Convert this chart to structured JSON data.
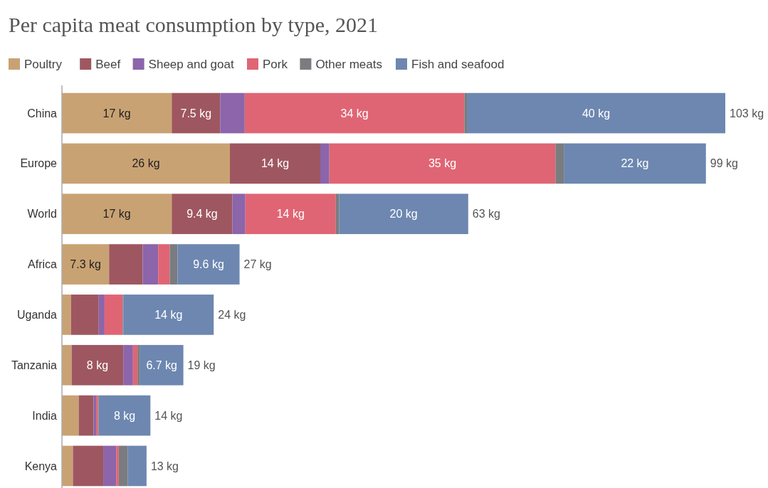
{
  "chart_data": {
    "type": "bar",
    "orientation": "horizontal",
    "stacked": true,
    "title": "Per capita meat consumption by type, 2021",
    "legend": "top left",
    "categories": [
      "China",
      "Europe",
      "World",
      "Africa",
      "Uganda",
      "Tanzania",
      "India",
      "Kenya"
    ],
    "series": [
      {
        "name": "Poultry",
        "color": "#c9a273",
        "values": [
          17,
          26,
          17,
          7.3,
          1.4,
          1.5,
          2.6,
          1.7
        ],
        "value_labels": [
          "17 kg",
          "26 kg",
          "17 kg",
          "7.3 kg",
          null,
          null,
          null,
          null
        ]
      },
      {
        "name": "Beef",
        "color": "#9e5760",
        "values": [
          7.5,
          14,
          9.4,
          5.2,
          4.3,
          8,
          2.3,
          4.7
        ],
        "value_labels": [
          "7.5 kg",
          "14 kg",
          "9.4 kg",
          null,
          null,
          "8 kg",
          null,
          null
        ]
      },
      {
        "name": "Sheep and goat",
        "color": "#8c65aa",
        "values": [
          3.8,
          1.4,
          2.0,
          2.4,
          0.9,
          1.5,
          0.4,
          2.0
        ],
        "value_labels": [
          null,
          null,
          null,
          null,
          null,
          null,
          null,
          null
        ]
      },
      {
        "name": "Pork",
        "color": "#e06574",
        "values": [
          34,
          35,
          14,
          1.8,
          2.8,
          0.7,
          0.3,
          0.4
        ],
        "value_labels": [
          "34 kg",
          "35 kg",
          "14 kg",
          null,
          null,
          null,
          null,
          null
        ]
      },
      {
        "name": "Other meats",
        "color": "#7a7c80",
        "values": [
          0.4,
          1.3,
          0.5,
          1.2,
          0.1,
          0.4,
          0.1,
          1.4
        ],
        "value_labels": [
          null,
          null,
          null,
          null,
          null,
          null,
          null,
          null
        ]
      },
      {
        "name": "Fish and seafood",
        "color": "#6d87b0",
        "values": [
          40,
          22,
          20,
          9.6,
          14,
          6.7,
          8,
          2.9
        ],
        "value_labels": [
          "40 kg",
          "22 kg",
          "20 kg",
          "9.6 kg",
          "14 kg",
          "6.7 kg",
          "8 kg",
          null
        ]
      }
    ],
    "totals": [
      "103 kg",
      "99 kg",
      "63 kg",
      "27 kg",
      "24 kg",
      "19 kg",
      "14 kg",
      "13 kg"
    ]
  }
}
